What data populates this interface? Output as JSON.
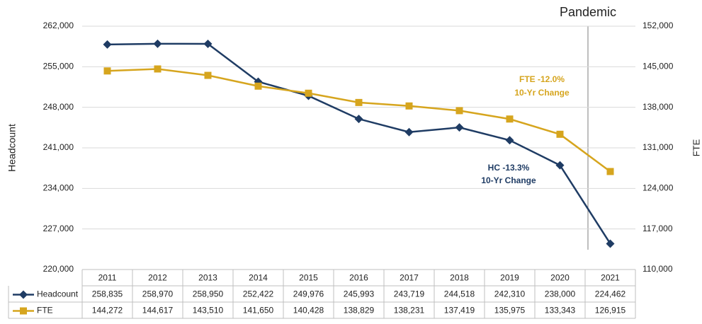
{
  "chart_data": {
    "type": "line",
    "categories": [
      "2011",
      "2012",
      "2013",
      "2014",
      "2015",
      "2016",
      "2017",
      "2018",
      "2019",
      "2020",
      "2021"
    ],
    "series": [
      {
        "name": "Headcount",
        "color": "#1f3c64",
        "marker": "diamond",
        "values": [
          258835,
          258970,
          258950,
          252422,
          249976,
          245993,
          243719,
          244518,
          242310,
          238000,
          224462
        ],
        "value_labels": [
          "258,835",
          "258,970",
          "258,950",
          "252,422",
          "249,976",
          "245,993",
          "243,719",
          "244,518",
          "242,310",
          "238,000",
          "224,462"
        ]
      },
      {
        "name": "FTE",
        "color": "#d6a51e",
        "marker": "square",
        "axis": "y2",
        "values": [
          144272,
          144617,
          143510,
          141650,
          140428,
          138829,
          138231,
          137419,
          135975,
          133343,
          126915
        ],
        "value_labels": [
          "144,272",
          "144,617",
          "143,510",
          "141,650",
          "140,428",
          "138,829",
          "138,231",
          "137,419",
          "135,975",
          "133,343",
          "126,915"
        ]
      }
    ],
    "ylabel": "Headcount",
    "y2label": "FTE",
    "ylim": [
      220000,
      262000
    ],
    "yticks": [
      {
        "value": 220000,
        "label": "220,000"
      },
      {
        "value": 227000,
        "label": "227,000"
      },
      {
        "value": 234000,
        "label": "234,000"
      },
      {
        "value": 241000,
        "label": "241,000"
      },
      {
        "value": 248000,
        "label": "248,000"
      },
      {
        "value": 255000,
        "label": "255,000"
      },
      {
        "value": 262000,
        "label": "262,000"
      }
    ],
    "y2lim": [
      110000,
      152000
    ],
    "y2ticks": [
      {
        "value": 110000,
        "label": "110,000"
      },
      {
        "value": 117000,
        "label": "117,000"
      },
      {
        "value": 124000,
        "label": "124,000"
      },
      {
        "value": 131000,
        "label": "131,000"
      },
      {
        "value": 138000,
        "label": "138,000"
      },
      {
        "value": 145000,
        "label": "145,000"
      },
      {
        "value": 152000,
        "label": "152,000"
      }
    ],
    "grid": true,
    "annotations": {
      "pandemic": "Pandemic",
      "fte_change": "FTE -12.0%",
      "fte_note": "10-Yr Change",
      "hc_change": "HC -13.3%",
      "hc_note": "10-Yr Change"
    }
  }
}
